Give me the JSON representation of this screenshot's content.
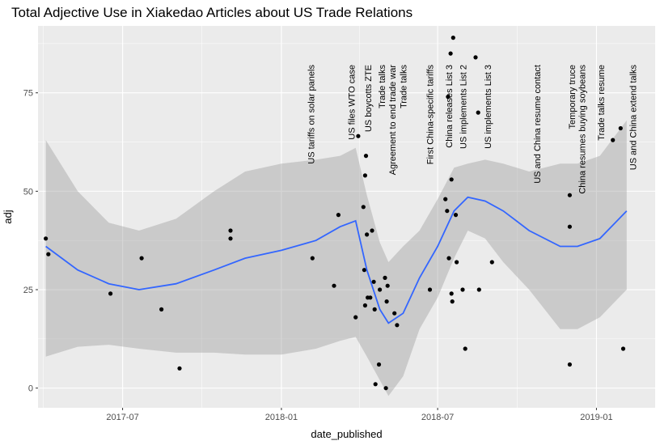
{
  "chart_data": {
    "type": "scatter",
    "title": "Total Adjective Use in Xiakedao Articles about US Trade Relations",
    "xlabel": "date_published",
    "ylabel": "adj",
    "xlim": [
      "2017-03-25",
      "2019-03-10"
    ],
    "ylim": [
      -5,
      92
    ],
    "x_ticks": [
      {
        "date": "2017-07-01",
        "label": "2017-07"
      },
      {
        "date": "2018-01-01",
        "label": "2018-01"
      },
      {
        "date": "2018-07-01",
        "label": "2018-07"
      },
      {
        "date": "2019-01-01",
        "label": "2019-01"
      }
    ],
    "y_ticks": [
      0,
      25,
      50,
      75
    ],
    "grid": true,
    "points": [
      {
        "x": "2017-04-03",
        "y": 38
      },
      {
        "x": "2017-04-06",
        "y": 34
      },
      {
        "x": "2017-06-17",
        "y": 24
      },
      {
        "x": "2017-07-23",
        "y": 33
      },
      {
        "x": "2017-08-15",
        "y": 20
      },
      {
        "x": "2017-09-05",
        "y": 5
      },
      {
        "x": "2017-11-03",
        "y": 40
      },
      {
        "x": "2017-11-03",
        "y": 38
      },
      {
        "x": "2018-02-06",
        "y": 33
      },
      {
        "x": "2018-03-03",
        "y": 26
      },
      {
        "x": "2018-03-08",
        "y": 44
      },
      {
        "x": "2018-03-28",
        "y": 18
      },
      {
        "x": "2018-03-31",
        "y": 64
      },
      {
        "x": "2018-04-06",
        "y": 46
      },
      {
        "x": "2018-04-07",
        "y": 30
      },
      {
        "x": "2018-04-08",
        "y": 54
      },
      {
        "x": "2018-04-08",
        "y": 21
      },
      {
        "x": "2018-04-09",
        "y": 59
      },
      {
        "x": "2018-04-10",
        "y": 39
      },
      {
        "x": "2018-04-11",
        "y": 23
      },
      {
        "x": "2018-04-14",
        "y": 23
      },
      {
        "x": "2018-04-16",
        "y": 40
      },
      {
        "x": "2018-04-18",
        "y": 27
      },
      {
        "x": "2018-04-19",
        "y": 20
      },
      {
        "x": "2018-04-20",
        "y": 1
      },
      {
        "x": "2018-04-24",
        "y": 6
      },
      {
        "x": "2018-04-25",
        "y": 25
      },
      {
        "x": "2018-05-01",
        "y": 28
      },
      {
        "x": "2018-05-02",
        "y": 0
      },
      {
        "x": "2018-05-03",
        "y": 22
      },
      {
        "x": "2018-05-04",
        "y": 26
      },
      {
        "x": "2018-05-12",
        "y": 19
      },
      {
        "x": "2018-05-15",
        "y": 16
      },
      {
        "x": "2018-06-22",
        "y": 25
      },
      {
        "x": "2018-07-10",
        "y": 48
      },
      {
        "x": "2018-07-12",
        "y": 45
      },
      {
        "x": "2018-07-13",
        "y": 74
      },
      {
        "x": "2018-07-14",
        "y": 33
      },
      {
        "x": "2018-07-16",
        "y": 85
      },
      {
        "x": "2018-07-17",
        "y": 24
      },
      {
        "x": "2018-07-17",
        "y": 53
      },
      {
        "x": "2018-07-18",
        "y": 22
      },
      {
        "x": "2018-07-19",
        "y": 89
      },
      {
        "x": "2018-07-22",
        "y": 44
      },
      {
        "x": "2018-07-23",
        "y": 32
      },
      {
        "x": "2018-07-30",
        "y": 25
      },
      {
        "x": "2018-08-02",
        "y": 10
      },
      {
        "x": "2018-08-14",
        "y": 84
      },
      {
        "x": "2018-08-17",
        "y": 70
      },
      {
        "x": "2018-08-18",
        "y": 25
      },
      {
        "x": "2018-09-02",
        "y": 32
      },
      {
        "x": "2018-12-01",
        "y": 49
      },
      {
        "x": "2018-12-01",
        "y": 41
      },
      {
        "x": "2018-12-01",
        "y": 6
      },
      {
        "x": "2019-01-20",
        "y": 63
      },
      {
        "x": "2019-01-29",
        "y": 66
      },
      {
        "x": "2019-02-01",
        "y": 10
      }
    ],
    "smooth": {
      "method": "loess",
      "color": "#3366ff",
      "band_color": "#999999",
      "x": [
        "2017-04-03",
        "2017-05-10",
        "2017-06-15",
        "2017-07-20",
        "2017-09-01",
        "2017-10-15",
        "2017-11-20",
        "2018-01-01",
        "2018-02-10",
        "2018-03-10",
        "2018-03-28",
        "2018-04-10",
        "2018-04-25",
        "2018-05-05",
        "2018-05-22",
        "2018-06-10",
        "2018-07-01",
        "2018-07-20",
        "2018-08-05",
        "2018-08-25",
        "2018-09-15",
        "2018-10-15",
        "2018-11-20",
        "2018-12-10",
        "2019-01-05",
        "2019-02-05"
      ],
      "y": [
        36,
        30,
        26.5,
        25,
        26.5,
        30,
        33,
        35,
        37.5,
        41,
        42.5,
        30,
        20,
        16.5,
        19,
        28,
        36,
        45,
        48.5,
        47.5,
        45,
        40,
        36,
        36,
        38,
        45
      ],
      "lower": [
        8,
        10.5,
        11,
        10,
        9,
        9,
        8.5,
        8.5,
        10,
        12,
        13,
        8,
        2,
        -2,
        3,
        15,
        23,
        33,
        40,
        38,
        32,
        25,
        15,
        15,
        18,
        25
      ],
      "upper": [
        63,
        50,
        42,
        40,
        43,
        50,
        55,
        57,
        58,
        59,
        61,
        49,
        37,
        32,
        36,
        40,
        48,
        56,
        57,
        58,
        57,
        55,
        57,
        57,
        59,
        68
      ]
    },
    "events": [
      {
        "date": "2018-02-08",
        "label": "US tariffs on solar panels"
      },
      {
        "date": "2018-03-27",
        "label": "US files WTO case"
      },
      {
        "date": "2018-04-15",
        "label": "US boycotts ZTE"
      },
      {
        "date": "2018-05-01",
        "label": "Trade talks"
      },
      {
        "date": "2018-05-13",
        "label": "Agreement to end trade war"
      },
      {
        "date": "2018-05-26",
        "label": "Trade talks"
      },
      {
        "date": "2018-06-26",
        "label": "First China-specific tariffs"
      },
      {
        "date": "2018-07-18",
        "label": "China releases List 3"
      },
      {
        "date": "2018-08-03",
        "label": "US implements List 2"
      },
      {
        "date": "2018-09-01",
        "label": "US implements List 3"
      },
      {
        "date": "2018-10-28",
        "label": "US and China resume contact"
      },
      {
        "date": "2018-12-07",
        "label": "Temporary truce"
      },
      {
        "date": "2018-12-19",
        "label": "China resumes buying soybeans"
      },
      {
        "date": "2019-01-10",
        "label": "Trade talks resume"
      },
      {
        "date": "2019-02-16",
        "label": "US and China extend talks"
      }
    ]
  }
}
